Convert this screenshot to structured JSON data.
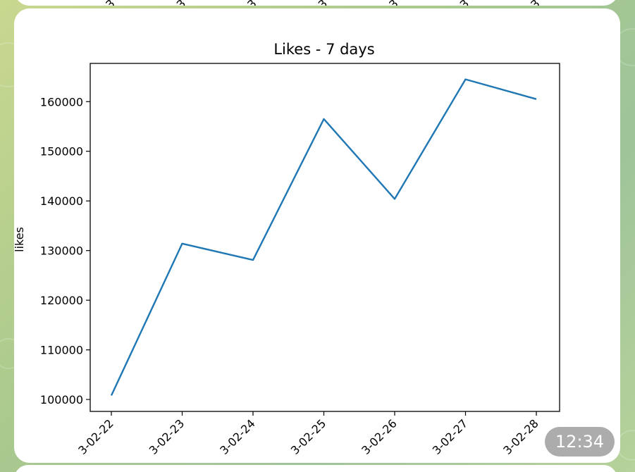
{
  "previous_message": {
    "tick_fragments": [
      "3",
      "3",
      "3",
      "3",
      "3",
      "3",
      "3"
    ]
  },
  "message": {
    "time": "12:34"
  },
  "chart_data": {
    "type": "line",
    "title": "Likes - 7 days",
    "xlabel": "",
    "ylabel": "likes",
    "x": [
      "2023-02-22",
      "2023-02-23",
      "2023-02-24",
      "2023-02-25",
      "2023-02-26",
      "2023-02-27",
      "2023-02-28"
    ],
    "x_tick_labels_visible": [
      "3-02-22",
      "3-02-23",
      "3-02-24",
      "3-02-25",
      "3-02-26",
      "3-02-27",
      "3-02-28"
    ],
    "values": [
      100800,
      131400,
      128100,
      156500,
      140400,
      164500,
      160500
    ],
    "y_ticks": [
      100000,
      110000,
      120000,
      130000,
      140000,
      150000,
      160000
    ],
    "ylim": [
      97600,
      167700
    ],
    "grid": false,
    "line_color": "#1f77b4"
  }
}
